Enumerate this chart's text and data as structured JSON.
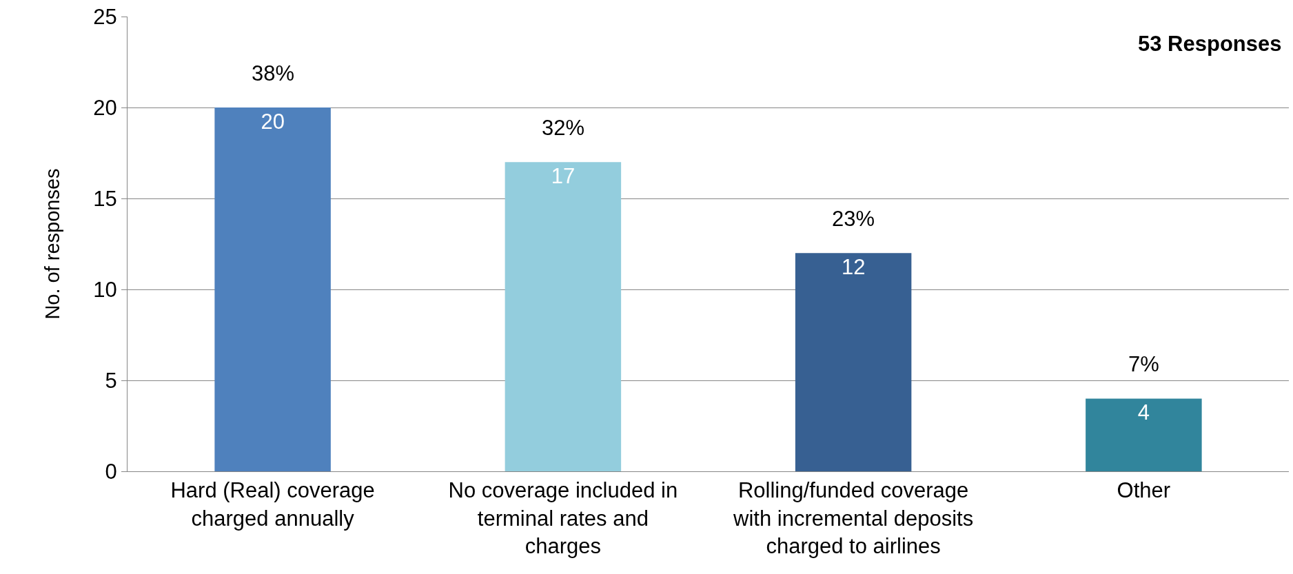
{
  "chart_data": {
    "type": "bar",
    "categories": [
      "Hard (Real) coverage charged annually",
      "No coverage included in terminal rates and charges",
      "Rolling/funded coverage with incremental deposits charged to airlines",
      "Other"
    ],
    "values": [
      20,
      17,
      12,
      4
    ],
    "colors": [
      "#4f81bd",
      "#93cddd",
      "#376092",
      "#31859c"
    ],
    "value_labels": [
      "20",
      "17",
      "12",
      "4"
    ],
    "ylabel": "No. of responses",
    "ylim": [
      0,
      25
    ],
    "yticks": [
      0,
      5,
      10,
      15,
      20,
      25
    ],
    "grid": "y",
    "annotations": [
      "53 Responses",
      {
        "text": "38%",
        "x": "Hard (Real) coverage charged annually",
        "y": 20
      },
      {
        "text": "32%",
        "x": "No coverage included in terminal rates and charges",
        "y": 17
      },
      {
        "text": "23%",
        "x": "Rolling/funded coverage with incremental deposits charged to airlines",
        "y": 12
      },
      {
        "text": "7%",
        "x": "Other",
        "y": 4
      }
    ]
  }
}
